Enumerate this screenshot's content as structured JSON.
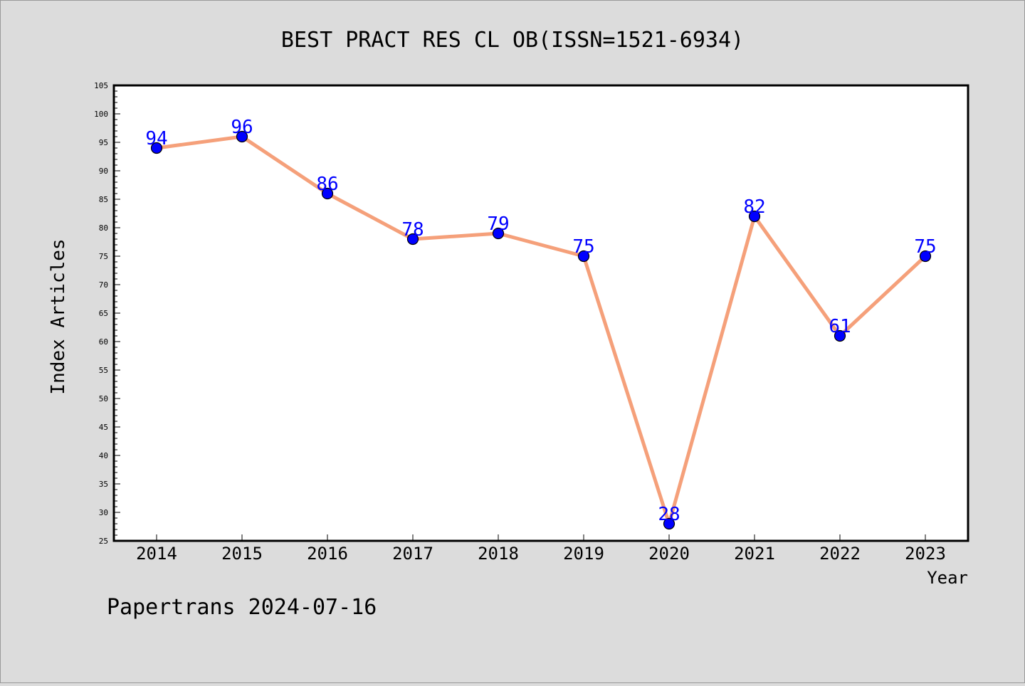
{
  "chart_data": {
    "type": "line",
    "title": "BEST PRACT RES CL OB(ISSN=1521-6934)",
    "xlabel": "Year",
    "ylabel": "Index Articles",
    "x": [
      "2014",
      "2015",
      "2016",
      "2017",
      "2018",
      "2019",
      "2020",
      "2021",
      "2022",
      "2023"
    ],
    "series": [
      {
        "values": [
          94,
          96,
          86,
          78,
          79,
          75,
          28,
          82,
          61,
          75
        ]
      }
    ],
    "ylim": [
      25,
      105
    ],
    "yticks": [
      25,
      30,
      35,
      40,
      45,
      50,
      55,
      60,
      65,
      70,
      75,
      80,
      85,
      90,
      95,
      100,
      105
    ],
    "grid": false,
    "data_labels": true,
    "colors": {
      "line": "#f5a07a",
      "marker": "#0000ff",
      "label": "#0000ff"
    }
  },
  "footer": {
    "watermark": "Papertrans 2024-07-16"
  }
}
